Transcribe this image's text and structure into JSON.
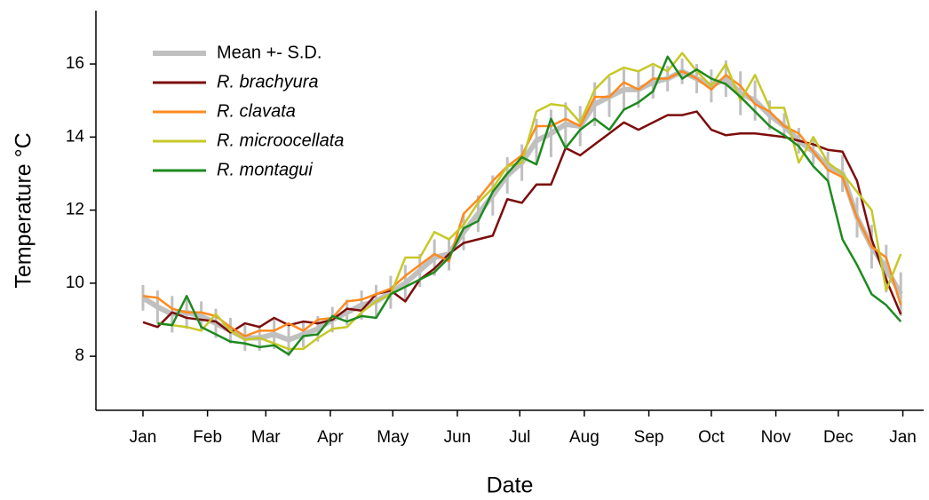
{
  "chart_data": {
    "type": "line",
    "x_label": "Date",
    "y_label": "Temperature °C",
    "x": [
      0,
      7,
      14,
      21,
      28,
      35,
      42,
      49,
      56,
      63,
      70,
      77,
      84,
      91,
      98,
      105,
      112,
      119,
      126,
      133,
      140,
      147,
      154,
      161,
      168,
      175,
      182,
      189,
      196,
      203,
      210,
      217,
      224,
      231,
      238,
      245,
      252,
      259,
      266,
      273,
      280,
      287,
      294,
      301,
      308,
      315,
      322,
      329,
      336,
      343,
      350,
      357,
      364
    ],
    "xlim": [
      -22.6,
      375
    ],
    "xticks": [
      {
        "value": 0,
        "label": "Jan"
      },
      {
        "value": 31,
        "label": "Feb"
      },
      {
        "value": 59,
        "label": "Mar"
      },
      {
        "value": 90,
        "label": "Apr"
      },
      {
        "value": 120,
        "label": "May"
      },
      {
        "value": 151,
        "label": "Jun"
      },
      {
        "value": 181,
        "label": "Jul"
      },
      {
        "value": 212,
        "label": "Aug"
      },
      {
        "value": 243,
        "label": "Sep"
      },
      {
        "value": 273,
        "label": "Oct"
      },
      {
        "value": 304,
        "label": "Nov"
      },
      {
        "value": 334,
        "label": "Dec"
      },
      {
        "value": 365,
        "label": "Jan"
      }
    ],
    "ylim": [
      6.52,
      17.46
    ],
    "yticks": [
      8,
      10,
      12,
      14,
      16
    ],
    "legend": "upper left",
    "series": [
      {
        "name": "Mean +- S.D.",
        "color": "#c0c0c0",
        "values": [
          9.6,
          9.35,
          9.15,
          9.2,
          9.1,
          8.9,
          8.7,
          8.5,
          8.5,
          8.6,
          8.45,
          8.6,
          8.75,
          9.0,
          9.2,
          9.4,
          9.5,
          9.75,
          10.0,
          10.35,
          10.7,
          10.8,
          11.4,
          11.9,
          12.4,
          12.95,
          13.3,
          13.9,
          14.1,
          14.35,
          14.3,
          14.9,
          15.1,
          15.3,
          15.3,
          15.5,
          15.6,
          15.8,
          15.6,
          15.4,
          15.6,
          15.2,
          15.0,
          14.6,
          14.3,
          13.9,
          13.6,
          13.2,
          13.0,
          11.8,
          11.0,
          10.4,
          9.7
        ],
        "errors": [
          0.35,
          0.45,
          0.5,
          0.45,
          0.4,
          0.4,
          0.35,
          0.35,
          0.35,
          0.4,
          0.45,
          0.35,
          0.35,
          0.35,
          0.35,
          0.4,
          0.45,
          0.45,
          0.5,
          0.45,
          0.5,
          0.45,
          0.5,
          0.5,
          0.55,
          0.5,
          0.5,
          0.6,
          0.65,
          0.6,
          0.55,
          0.6,
          0.55,
          0.55,
          0.5,
          0.45,
          0.35,
          0.35,
          0.4,
          0.45,
          0.5,
          0.6,
          0.55,
          0.4,
          0.35,
          0.35,
          0.35,
          0.4,
          0.5,
          0.55,
          0.6,
          0.65,
          0.6
        ]
      },
      {
        "name": "R. brachyura",
        "color": "#7d0c0c",
        "values": [
          8.93,
          8.8,
          9.2,
          9.05,
          9.0,
          8.95,
          8.65,
          8.9,
          8.8,
          9.05,
          8.85,
          8.95,
          8.9,
          9.0,
          9.3,
          9.25,
          9.7,
          9.8,
          9.5,
          10.1,
          10.4,
          10.8,
          11.1,
          11.2,
          11.3,
          12.3,
          12.2,
          12.7,
          12.7,
          13.7,
          13.5,
          13.8,
          14.1,
          14.4,
          14.2,
          14.4,
          14.6,
          14.6,
          14.7,
          14.2,
          14.05,
          14.1,
          14.1,
          14.05,
          14.0,
          13.9,
          13.8,
          13.65,
          13.6,
          12.8,
          11.2,
          10.1,
          9.15
        ]
      },
      {
        "name": "R. clavata",
        "color": "#ff8a1f",
        "values": [
          9.65,
          9.6,
          9.3,
          9.2,
          9.2,
          9.1,
          8.8,
          8.55,
          8.7,
          8.7,
          8.9,
          8.7,
          9.0,
          9.05,
          9.5,
          9.55,
          9.7,
          9.85,
          10.2,
          10.5,
          10.8,
          10.6,
          11.9,
          12.3,
          12.8,
          13.2,
          13.5,
          14.3,
          14.3,
          14.5,
          14.3,
          15.1,
          15.1,
          15.5,
          15.3,
          15.6,
          15.6,
          15.8,
          15.6,
          15.3,
          15.7,
          15.4,
          14.9,
          14.7,
          14.3,
          14.1,
          13.6,
          13.1,
          12.9,
          11.8,
          11.0,
          10.7,
          9.4
        ]
      },
      {
        "name": "R. microocellata",
        "color": "#c6c828",
        "values": [
          null,
          8.9,
          8.85,
          8.8,
          8.7,
          9.15,
          8.7,
          8.45,
          8.5,
          8.35,
          8.2,
          8.2,
          8.5,
          8.75,
          8.8,
          9.2,
          9.5,
          9.7,
          10.7,
          10.7,
          11.4,
          11.2,
          11.6,
          12.2,
          12.6,
          13.2,
          13.3,
          14.7,
          14.9,
          14.85,
          14.4,
          15.3,
          15.7,
          15.9,
          15.8,
          16.0,
          15.8,
          16.3,
          15.8,
          15.4,
          16.0,
          15.0,
          15.7,
          14.8,
          14.8,
          13.3,
          14.0,
          13.3,
          13.0,
          12.5,
          12.0,
          9.8,
          10.8
        ]
      },
      {
        "name": "R. montagui",
        "color": "#1e8a1e",
        "values": [
          null,
          8.9,
          8.85,
          9.65,
          8.8,
          8.6,
          8.4,
          8.35,
          8.25,
          8.3,
          8.05,
          8.55,
          8.6,
          9.1,
          8.95,
          9.1,
          9.05,
          9.7,
          9.9,
          10.1,
          10.3,
          10.7,
          11.5,
          11.7,
          12.5,
          13.0,
          13.45,
          13.25,
          14.5,
          13.7,
          14.2,
          14.5,
          14.2,
          14.75,
          14.95,
          15.25,
          16.2,
          15.6,
          15.85,
          15.6,
          15.45,
          15.1,
          14.7,
          14.3,
          14.05,
          13.75,
          13.2,
          12.8,
          11.2,
          10.5,
          9.7,
          9.4,
          8.95
        ]
      }
    ]
  }
}
